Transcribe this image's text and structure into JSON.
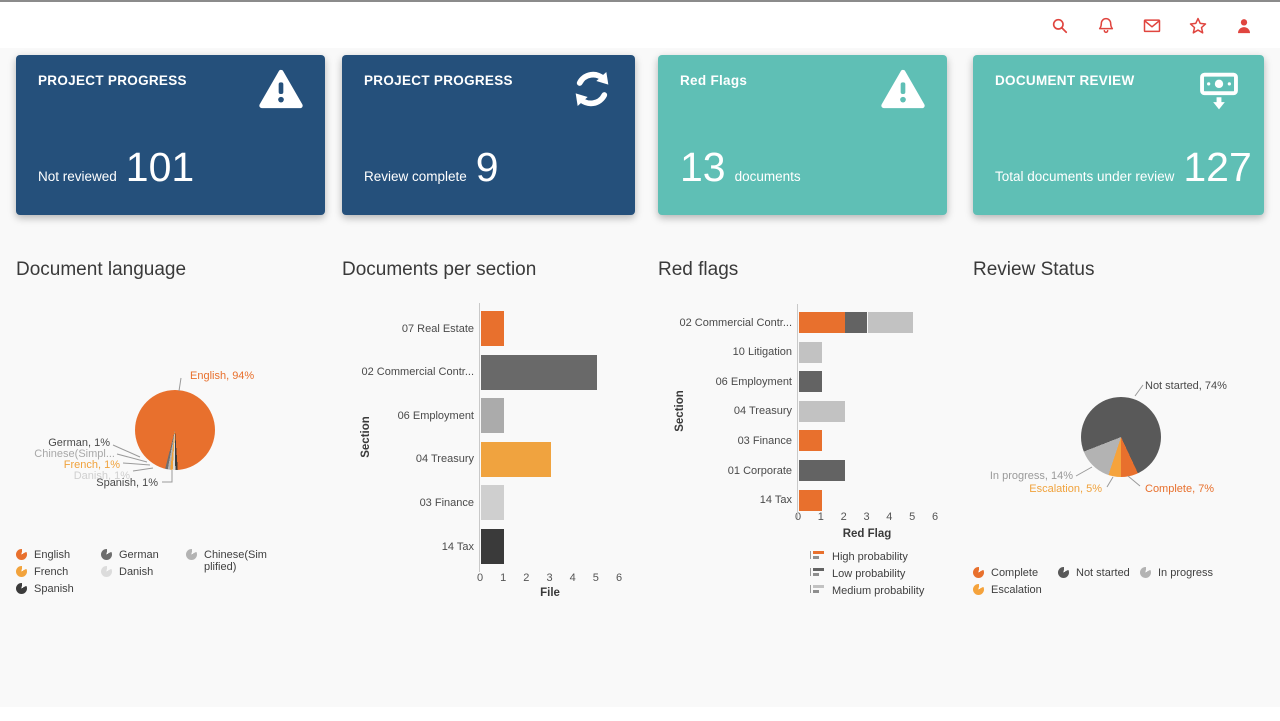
{
  "topbar": {
    "accent": "#E0453F",
    "icons": [
      "search",
      "notifications",
      "mail",
      "favorites",
      "account"
    ]
  },
  "cards": [
    {
      "title": "PROJECT PROGRESS",
      "label": "Not reviewed",
      "value": "101",
      "icon": "warning",
      "bg": "#25507B"
    },
    {
      "title": "PROJECT PROGRESS",
      "label": "Review complete",
      "value": "9",
      "icon": "refresh",
      "bg": "#25507B"
    },
    {
      "title": "Red Flags",
      "label": "documents",
      "value": "13",
      "icon": "warning",
      "bg": "#5FBFB5"
    },
    {
      "title": "DOCUMENT REVIEW",
      "label": "Total documents under review",
      "value": "127",
      "icon": "cash-out",
      "bg": "#5FBFB5"
    }
  ],
  "sections": {
    "language_title": "Document language",
    "per_section_title": "Documents per section",
    "red_flags_title": "Red flags",
    "review_status_title": "Review Status"
  },
  "chart_data": [
    {
      "type": "pie",
      "title": "Document language",
      "rotation_deg": 176,
      "slices": [
        {
          "label": "Spanish",
          "value": 1,
          "color": "#3B3B3B"
        },
        {
          "label": "Danish",
          "value": 1,
          "color": "#DCDCDC"
        },
        {
          "label": "French",
          "value": 1,
          "color": "#F2A33C"
        },
        {
          "label": "Chinese(Simplified)",
          "value": 1,
          "color": "#B3B3B3"
        },
        {
          "label": "German",
          "value": 1,
          "color": "#6E6E6E"
        },
        {
          "label": "English",
          "value": 94,
          "color": "#E8702D"
        }
      ],
      "annotations": {
        "english": "English, 94%",
        "german": "German, 1%",
        "chinese": "Chinese(Simpl...",
        "french": "French, 1%",
        "danish": "Danish, 1%",
        "spanish": "Spanish, 1%"
      },
      "legend": [
        {
          "label": "English",
          "color": "#E8702D"
        },
        {
          "label": "French",
          "color": "#F2A33C"
        },
        {
          "label": "Spanish",
          "color": "#3B3B3B"
        },
        {
          "label": "German",
          "color": "#6E6E6E"
        },
        {
          "label": "Danish",
          "color": "#DCDCDC"
        },
        {
          "label": "Chinese(Simplified)",
          "color": "#B3B3B3"
        }
      ]
    },
    {
      "type": "bar",
      "title": "Documents per section",
      "xlabel": "File",
      "ylabel": "Section",
      "xlim": [
        0,
        6
      ],
      "categories": [
        "07 Real Estate",
        "02 Commercial Contr...",
        "06 Employment",
        "04 Treasury",
        "03 Finance",
        "14 Tax"
      ],
      "values": [
        1,
        5,
        1,
        3,
        1,
        1
      ],
      "colors": [
        "#E8702D",
        "#696969",
        "#ABABAB",
        "#F0A33F",
        "#CFCFCF",
        "#3A3A3A"
      ]
    },
    {
      "type": "stacked-bar",
      "title": "Red flags",
      "xlabel": "Red Flag",
      "ylabel": "Section",
      "xlim": [
        0,
        6
      ],
      "categories": [
        "02 Commercial Contr...",
        "10 Litigation",
        "06 Employment",
        "04 Treasury",
        "03 Finance",
        "01 Corporate",
        "14 Tax"
      ],
      "series": [
        {
          "name": "High probability",
          "color": "#E8702D",
          "values": [
            2,
            0,
            0,
            0,
            1,
            0,
            1
          ]
        },
        {
          "name": "Low probability",
          "color": "#636363",
          "values": [
            1,
            0,
            1,
            0,
            0,
            2,
            0
          ]
        },
        {
          "name": "Medium probability",
          "color": "#C2C2C2",
          "values": [
            2,
            1,
            0,
            2,
            0,
            0,
            0
          ]
        }
      ],
      "legend": [
        {
          "label": "High probability",
          "color": "#E8702D"
        },
        {
          "label": "Low probability",
          "color": "#636363"
        },
        {
          "label": "Medium probability",
          "color": "#C2C2C2"
        }
      ]
    },
    {
      "type": "pie",
      "title": "Review Status",
      "rotation_deg": 155,
      "slices": [
        {
          "label": "Complete",
          "value": 7,
          "color": "#E8702D"
        },
        {
          "label": "Escalation",
          "value": 5,
          "color": "#F5A33C"
        },
        {
          "label": "In progress",
          "value": 14,
          "color": "#B3B3B3"
        },
        {
          "label": "Not started",
          "value": 74,
          "color": "#595959"
        }
      ],
      "annotations": {
        "not_started": "Not started, 74%",
        "in_progress": "In progress, 14%",
        "escalation": "Escalation, 5%",
        "complete": "Complete, 7%"
      },
      "legend": [
        {
          "label": "Complete",
          "color": "#E8702D"
        },
        {
          "label": "Escalation",
          "color": "#F5A33C"
        },
        {
          "label": "Not started",
          "color": "#595959"
        },
        {
          "label": "In progress",
          "color": "#B3B3B3"
        }
      ]
    }
  ]
}
